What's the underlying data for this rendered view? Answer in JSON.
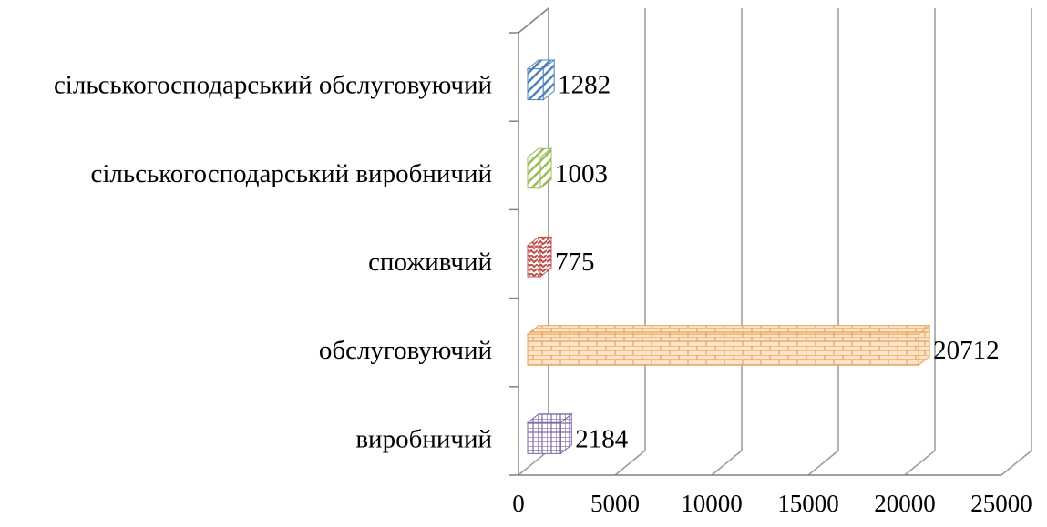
{
  "chart_data": {
    "type": "bar",
    "orientation": "horizontal",
    "style": "3d",
    "title": "",
    "xlabel": "",
    "ylabel": "",
    "xlim": [
      0,
      25000
    ],
    "xticks": [
      0,
      5000,
      10000,
      15000,
      20000,
      25000
    ],
    "grid": true,
    "legend": "none",
    "categories": [
      "виробничий",
      "обслуговуючий",
      "споживчий",
      "сільськогосподарський виробничий",
      "сільськогосподарський обслуговуючий"
    ],
    "values": [
      2184,
      20712,
      775,
      1003,
      1282
    ],
    "colors": [
      "#7d6aa6",
      "#e8a25a",
      "#c0504d",
      "#9bbb59",
      "#4f81bd"
    ],
    "patterns": [
      "grid",
      "brick",
      "zigzag",
      "diagonal",
      "diagonal"
    ]
  }
}
